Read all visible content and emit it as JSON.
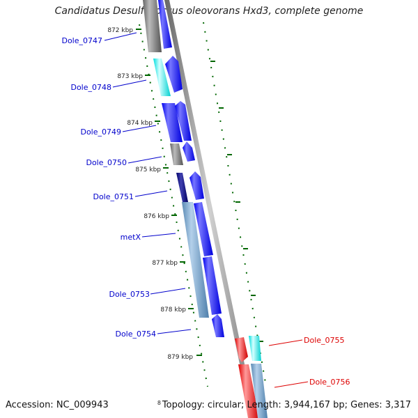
{
  "title": "Candidatus Desulfococcus oleovorans Hxd3, complete genome",
  "accession": "Accession: NC_009943",
  "footer_tick": "8",
  "summary": "Topology: circular; Length: 3,944,167 bp; Genes: 3,317",
  "colors": {
    "forward_gene": "#0000ee",
    "forward_gene_light": "#6f6fff",
    "gene_gray": "#707070",
    "gene_gray_light": "#bdbdbd",
    "gene_cyan": "#00e5e5",
    "gene_cyan_light": "#c8ffff",
    "gene_steel": "#5e8fba",
    "gene_steel_light": "#a9c8e4",
    "gene_navy": "#0a0a7a",
    "gene_red": "#ee0000",
    "gene_red_light": "#ff8a8a",
    "label_blue": "#0000cc",
    "label_red": "#dd0000",
    "tick_green": "#006600",
    "backbone": "#8a8a8a"
  },
  "kbp_ticks": [
    "872 kbp",
    "873 kbp",
    "874 kbp",
    "875 kbp",
    "876 kbp",
    "877 kbp",
    "878 kbp",
    "879 kbp"
  ],
  "gene_labels_left": [
    "Dole_0747",
    "Dole_0748",
    "Dole_0749",
    "Dole_0750",
    "Dole_0751",
    "metX",
    "Dole_0753",
    "Dole_0754"
  ],
  "gene_labels_right": [
    "Dole_0755",
    "Dole_0756"
  ]
}
